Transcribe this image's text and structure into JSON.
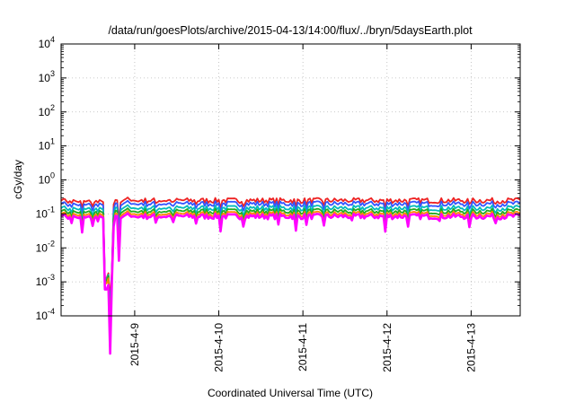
{
  "chart_data": {
    "type": "line",
    "title": "/data/run/goesPlots/archive/2015-04-13/14:00/flux/../bryn/5daysEarth.plot",
    "xlabel": "Coordinated Universal Time (UTC)",
    "ylabel": "cGy/day",
    "yscale": "log",
    "ylim": [
      0.0001,
      10000
    ],
    "y_ticks": [
      {
        "value": 0.0001,
        "base": "10",
        "exp": "-4"
      },
      {
        "value": 0.001,
        "base": "10",
        "exp": "-3"
      },
      {
        "value": 0.01,
        "base": "10",
        "exp": "-2"
      },
      {
        "value": 0.1,
        "base": "10",
        "exp": "-1"
      },
      {
        "value": 1,
        "base": "10",
        "exp": "0"
      },
      {
        "value": 10,
        "base": "10",
        "exp": "1"
      },
      {
        "value": 100,
        "base": "10",
        "exp": "2"
      },
      {
        "value": 1000,
        "base": "10",
        "exp": "3"
      },
      {
        "value": 10000,
        "base": "10",
        "exp": "4"
      }
    ],
    "xlim": [
      "2015-04-08T03:00",
      "2015-04-13T14:00"
    ],
    "x_ticks": [
      {
        "value": "2015-04-09T00:00",
        "label": "2015-4-9"
      },
      {
        "value": "2015-04-10T00:00",
        "label": "2015-4-10"
      },
      {
        "value": "2015-04-11T00:00",
        "label": "2015-4-11"
      },
      {
        "value": "2015-04-12T00:00",
        "label": "2015-4-12"
      },
      {
        "value": "2015-04-13T00:00",
        "label": "2015-4-13"
      }
    ],
    "grid": true,
    "legend": "none",
    "series_colors": [
      "#ee2222",
      "#3355ff",
      "#00bbbb",
      "#22aa22",
      "#ff8800",
      "#ff00ff"
    ],
    "sample_interval_hours": 0.5,
    "envelope": {
      "x": [
        "2015-04-08T03:00",
        "2015-04-08T04:00",
        "2015-04-08T05:00",
        "2015-04-08T06:00",
        "2015-04-08T07:00",
        "2015-04-08T08:00",
        "2015-04-08T09:00",
        "2015-04-08T10:00",
        "2015-04-08T11:00",
        "2015-04-08T12:00",
        "2015-04-08T13:00",
        "2015-04-08T14:00",
        "2015-04-08T15:00",
        "2015-04-08T16:00",
        "2015-04-08T17:00",
        "2015-04-08T18:00",
        "2015-04-08T19:00",
        "2015-04-08T20:00",
        "2015-04-08T21:00",
        "2015-04-08T22:00",
        "2015-04-08T23:00",
        "2015-04-09T00:00",
        "2015-04-09T01:00",
        "2015-04-09T02:00"
      ],
      "upper": [
        0.25,
        0.28,
        0.21,
        0.27,
        0.24,
        0.22,
        0.26,
        0.23,
        0.25,
        0.2,
        0.24,
        0.26,
        0.22,
        0.0013,
        0.0025,
        0.27,
        0.25,
        0.22,
        0.26,
        0.3,
        0.24,
        0.25,
        0.23,
        0.26
      ],
      "lower": [
        0.075,
        0.048,
        0.07,
        0.065,
        0.072,
        0.027,
        0.068,
        0.074,
        0.066,
        0.07,
        0.073,
        0.055,
        0.069,
        0.0006,
        0.0011,
        0.062,
        0.0045,
        0.068,
        0.071,
        0.074,
        0.065,
        0.07,
        0.068,
        0.072
      ]
    },
    "drops": [
      {
        "x": "2015-04-08T06:00",
        "value": 0.05
      },
      {
        "x": "2015-04-08T09:00",
        "value": 0.027
      },
      {
        "x": "2015-04-08T12:00",
        "value": 0.055
      },
      {
        "x": "2015-04-08T13:30",
        "value": 0.06
      },
      {
        "x": "2015-04-08T17:00",
        "value": 0.0006
      },
      {
        "x": "2015-04-08T18:00",
        "value": 0.04
      },
      {
        "x": "2015-04-08T19:30",
        "value": 0.0045
      },
      {
        "x": "2015-04-09T06:00",
        "value": 0.055
      },
      {
        "x": "2015-04-09T11:00",
        "value": 0.05
      },
      {
        "x": "2015-04-09T17:30",
        "value": 0.055
      },
      {
        "x": "2015-04-10T00:30",
        "value": 0.035
      },
      {
        "x": "2015-04-10T07:00",
        "value": 0.05
      },
      {
        "x": "2015-04-10T17:00",
        "value": 0.055
      },
      {
        "x": "2015-04-10T22:00",
        "value": 0.03
      },
      {
        "x": "2015-04-11T01:00",
        "value": 0.055
      },
      {
        "x": "2015-04-11T06:00",
        "value": 0.05
      },
      {
        "x": "2015-04-11T14:00",
        "value": 0.055
      },
      {
        "x": "2015-04-11T23:30",
        "value": 0.03
      },
      {
        "x": "2015-04-12T06:00",
        "value": 0.05
      },
      {
        "x": "2015-04-12T15:00",
        "value": 0.06
      },
      {
        "x": "2015-04-12T23:30",
        "value": 0.035
      },
      {
        "x": "2015-04-13T07:00",
        "value": 0.055
      }
    ],
    "series": [
      {
        "color": "#ee2222",
        "typical": 0.25,
        "values_at_dip": [
          0.0013,
          0.0025
        ]
      },
      {
        "color": "#3355ff",
        "typical": 0.2,
        "values_at_dip": [
          0.001,
          0.002
        ]
      },
      {
        "color": "#00bbbb",
        "typical": 0.15,
        "values_at_dip": [
          0.0012,
          0.0022
        ]
      },
      {
        "color": "#22aa22",
        "typical": 0.12,
        "values_at_dip": [
          0.0011,
          0.002
        ]
      },
      {
        "color": "#ff8800",
        "typical": 0.1,
        "values_at_dip": [
          0.0009,
          0.0018
        ]
      },
      {
        "color": "#ff00ff",
        "typical": 0.085,
        "values_at_dip": [
          0.0006,
          0.0011
        ]
      }
    ]
  }
}
